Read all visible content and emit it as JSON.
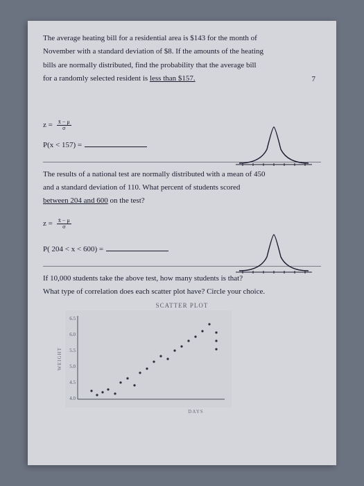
{
  "problem1": {
    "line1": "The average heating bill for a residential area is $143 for the month of",
    "line2": "November with a standard deviation of $8. If the amounts of the heating",
    "line3": "bills are normally distributed, find the probability that the average bill",
    "line4_pre": "for a randomly selected resident is ",
    "line4_underlined": "less than $157.",
    "page_num": "7",
    "z_label": "z =",
    "frac_num": "x̄ − μ",
    "frac_den": "σ",
    "answer_label": "P(x < 157) ="
  },
  "problem2": {
    "line1": "The results of a national test are normally distributed with a mean of 450",
    "line2": "and a standard deviation of 110. What percent of students scored",
    "line3_underlined": "between 204 and 600",
    "line3_post": " on the test?",
    "z_label": "z =",
    "frac_num": "x̄ − μ",
    "frac_den": "σ",
    "answer_label": "P( 204 < x < 600) ="
  },
  "problem3": {
    "line1": "If 10,000 students take the above test, how many students is that?",
    "line2": "What type of correlation does each scatter plot have? Circle your choice."
  },
  "scatter": {
    "title": "SCATTER PLOT",
    "ylabel": "WEIGHT",
    "xlabel": "DAYS",
    "yticks": [
      "6.5",
      "6.0",
      "5.5",
      "5.0",
      "4.5",
      "4.0"
    ],
    "points": [
      [
        20,
        108
      ],
      [
        28,
        114
      ],
      [
        36,
        110
      ],
      [
        44,
        106
      ],
      [
        54,
        112
      ],
      [
        62,
        96
      ],
      [
        72,
        90
      ],
      [
        82,
        100
      ],
      [
        90,
        82
      ],
      [
        100,
        76
      ],
      [
        110,
        66
      ],
      [
        120,
        58
      ],
      [
        130,
        62
      ],
      [
        140,
        50
      ],
      [
        150,
        44
      ],
      [
        160,
        36
      ],
      [
        170,
        30
      ],
      [
        180,
        22
      ],
      [
        190,
        12
      ],
      [
        200,
        24
      ],
      [
        200,
        36
      ],
      [
        200,
        48
      ]
    ],
    "background_color": "#d0d2d8",
    "axis_color": "#4a4d56",
    "point_color": "#2a2d36"
  },
  "bell_curve": {
    "stroke": "#1a1a2e",
    "stroke_width": 1.2
  }
}
